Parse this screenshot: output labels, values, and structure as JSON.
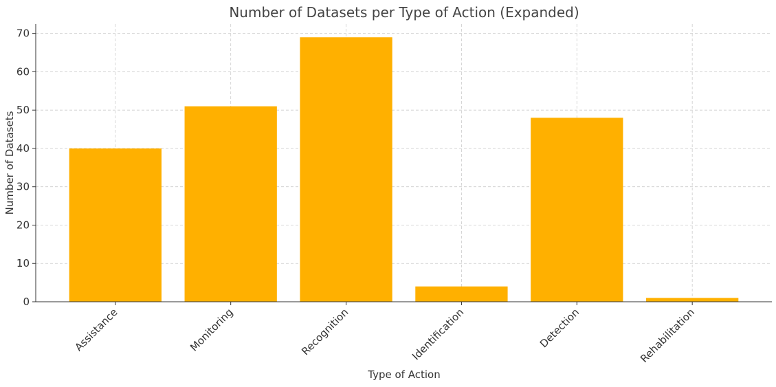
{
  "chart_data": {
    "type": "bar",
    "title": "Number of Datasets per Type of Action (Expanded)",
    "xlabel": "Type of Action",
    "ylabel": "Number of Datasets",
    "categories": [
      "Assistance",
      "Monitoring",
      "Recognition",
      "Identification",
      "Detection",
      "Rehabilitation"
    ],
    "values": [
      40,
      51,
      69,
      4,
      48,
      1
    ],
    "color": "#ffb000",
    "ylim": [
      0,
      72.45
    ],
    "yticks": [
      0,
      10,
      20,
      30,
      40,
      50,
      60,
      70
    ],
    "grid": true
  }
}
